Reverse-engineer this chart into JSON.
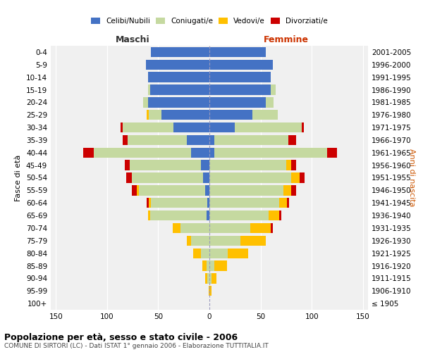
{
  "age_groups": [
    "100+",
    "95-99",
    "90-94",
    "85-89",
    "80-84",
    "75-79",
    "70-74",
    "65-69",
    "60-64",
    "55-59",
    "50-54",
    "45-49",
    "40-44",
    "35-39",
    "30-34",
    "25-29",
    "20-24",
    "15-19",
    "10-14",
    "5-9",
    "0-4"
  ],
  "birth_years": [
    "≤ 1905",
    "1906-1910",
    "1911-1915",
    "1916-1920",
    "1921-1925",
    "1926-1930",
    "1931-1935",
    "1936-1940",
    "1941-1945",
    "1946-1950",
    "1951-1955",
    "1956-1960",
    "1961-1965",
    "1966-1970",
    "1971-1975",
    "1976-1980",
    "1981-1985",
    "1986-1990",
    "1991-1995",
    "1996-2000",
    "2001-2005"
  ],
  "male": {
    "celibi": [
      0,
      0,
      0,
      0,
      0,
      0,
      0,
      3,
      2,
      4,
      6,
      8,
      18,
      22,
      35,
      47,
      60,
      58,
      60,
      62,
      57
    ],
    "coniugati": [
      0,
      0,
      2,
      3,
      8,
      18,
      28,
      55,
      55,
      65,
      70,
      70,
      95,
      58,
      50,
      12,
      5,
      2,
      0,
      0,
      0
    ],
    "vedovi": [
      0,
      1,
      2,
      4,
      8,
      4,
      8,
      2,
      2,
      2,
      0,
      0,
      0,
      0,
      0,
      2,
      0,
      0,
      0,
      0,
      0
    ],
    "divorziati": [
      0,
      0,
      0,
      0,
      0,
      0,
      0,
      0,
      2,
      5,
      5,
      5,
      10,
      5,
      2,
      0,
      0,
      0,
      0,
      0,
      0
    ]
  },
  "female": {
    "nubili": [
      0,
      0,
      0,
      0,
      0,
      0,
      0,
      0,
      0,
      0,
      0,
      0,
      5,
      5,
      25,
      42,
      55,
      60,
      60,
      62,
      55
    ],
    "coniugate": [
      0,
      0,
      2,
      5,
      18,
      30,
      40,
      58,
      68,
      72,
      80,
      75,
      110,
      72,
      65,
      25,
      8,
      5,
      0,
      0,
      0
    ],
    "vedove": [
      0,
      2,
      5,
      12,
      20,
      25,
      20,
      10,
      8,
      8,
      8,
      5,
      0,
      0,
      0,
      0,
      0,
      0,
      0,
      0,
      0
    ],
    "divorziate": [
      0,
      0,
      0,
      0,
      0,
      0,
      2,
      2,
      2,
      5,
      5,
      5,
      10,
      8,
      2,
      0,
      0,
      0,
      0,
      0,
      0
    ]
  },
  "colors": {
    "celibi": "#4472c4",
    "coniugati": "#c5d9a0",
    "vedovi": "#ffc000",
    "divorziati": "#cc0000"
  },
  "xlim": 155,
  "title": "Popolazione per età, sesso e stato civile - 2006",
  "subtitle": "COMUNE DI SIRTORI (LC) - Dati ISTAT 1° gennaio 2006 - Elaborazione TUTTITALIA.IT",
  "bg_color": "#f0f0f0",
  "legend_labels": [
    "Celibi/Nubili",
    "Coniugati/e",
    "Vedovi/e",
    "Divorziati/e"
  ],
  "maschi_label": "Maschi",
  "femmine_label": "Femmine",
  "ylabel_left": "Fasce di età",
  "ylabel_right": "Anni di nascita"
}
